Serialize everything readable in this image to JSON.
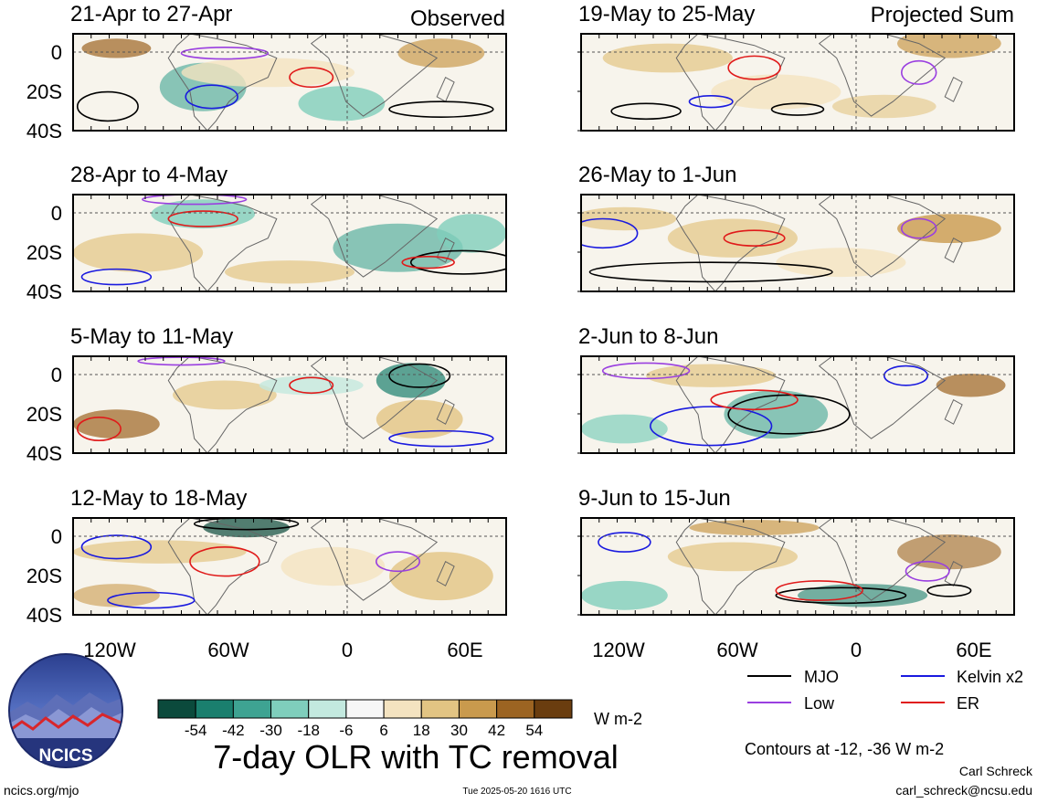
{
  "columns": [
    {
      "header": "Observed"
    },
    {
      "header": "Projected Sum"
    }
  ],
  "panels": [
    {
      "title": "21-Apr to 27-Apr"
    },
    {
      "title": "28-Apr to 4-May"
    },
    {
      "title": "5-May to 11-May"
    },
    {
      "title": "12-May to 18-May"
    },
    {
      "title": "19-May to 25-May"
    },
    {
      "title": "26-May to 1-Jun"
    },
    {
      "title": "2-Jun to 8-Jun"
    },
    {
      "title": "9-Jun to 15-Jun"
    }
  ],
  "lat_labels": [
    "0",
    "20S",
    "40S"
  ],
  "lon_labels": [
    "120W",
    "60W",
    "0",
    "60E"
  ],
  "colorbar": {
    "colors": [
      "#0b4a3c",
      "#1a7f6e",
      "#3ea392",
      "#7fcebc",
      "#c3e9df",
      "#f7f7f7",
      "#f4e3c0",
      "#e2c483",
      "#c99a4d",
      "#9c6422",
      "#6a3d0f"
    ],
    "ticks": [
      "-54",
      "-42",
      "-30",
      "-18",
      "-6",
      "6",
      "18",
      "30",
      "42",
      "54"
    ],
    "unit": "W m-2"
  },
  "legend": [
    {
      "label": "MJO",
      "color": "#000000"
    },
    {
      "label": "Kelvin x2",
      "color": "#1a1adf"
    },
    {
      "label": "Low",
      "color": "#9a3fe0"
    },
    {
      "label": "ER",
      "color": "#e01a1a"
    }
  ],
  "contour_note": "Contours at -12, -36 W m-2",
  "title": "7-day OLR with TC removal",
  "logo_text": "NCICS",
  "footer": {
    "url": "ncics.org/mjo",
    "timestamp": "Tue 2025-05-20 1616 UTC",
    "author": "Carl Schreck",
    "email": "carl_schreck@ncsu.edu"
  }
}
